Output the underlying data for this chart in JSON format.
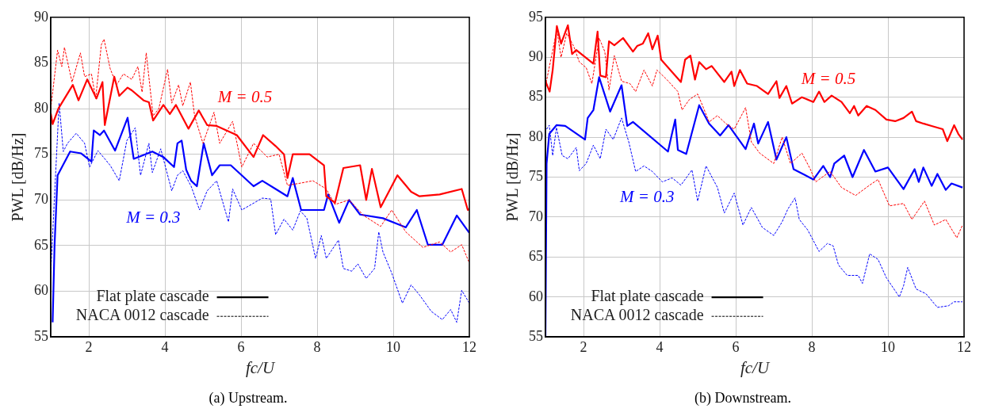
{
  "chart_data": [
    {
      "type": "line",
      "xlabel": "fc/U",
      "ylabel": "PWL [dB/Hz]",
      "xlim": [
        1,
        12
      ],
      "xticks": [
        2,
        4,
        6,
        8,
        10,
        12
      ],
      "ylim": [
        55,
        90
      ],
      "yticks": [
        55,
        60,
        65,
        70,
        75,
        80,
        85,
        90
      ],
      "grid": true,
      "annotations": [
        "M = 0.5",
        "M = 0.3",
        "Flat plate cascade",
        "NACA 0012 cascade",
        "(a) Upstream."
      ],
      "series": [
        {
          "color": "#ff0000",
          "line_style": "solid",
          "x": [
            1.0,
            1.05,
            1.2,
            1.58,
            1.73,
            1.96,
            2.2,
            2.36,
            2.42,
            2.67,
            2.8,
            3.02,
            3.13,
            3.44,
            3.58,
            3.69,
            3.96,
            4.13,
            4.29,
            4.62,
            4.89,
            5.11,
            5.36,
            5.89,
            6.33,
            6.58,
            6.91,
            7.13,
            7.22,
            7.36,
            7.8,
            8.18,
            8.24,
            8.47,
            8.69,
            9.13,
            9.29,
            9.44,
            9.67,
            10.11,
            10.47,
            10.69,
            11.22,
            11.8,
            11.96,
            12
          ],
          "values": [
            79.5,
            78.3,
            80,
            82.6,
            80.9,
            83.2,
            81.1,
            82.9,
            78.2,
            83.5,
            81.4,
            82.3,
            82,
            80.9,
            80.7,
            78.7,
            80.4,
            79.4,
            80.4,
            77.8,
            79.8,
            78.2,
            78.1,
            77.1,
            74.7,
            77.1,
            75.9,
            75,
            72.4,
            75,
            75,
            73.8,
            70.4,
            69.7,
            73.5,
            73.8,
            70,
            73.4,
            69.2,
            72.7,
            70.9,
            70.4,
            70.6,
            71.2,
            68.9,
            69
          ]
        },
        {
          "color": "#ff0000",
          "line_style": "dashed",
          "x": [
            1.0,
            1.18,
            1.29,
            1.36,
            1.56,
            1.78,
            1.89,
            2.07,
            2.18,
            2.33,
            2.4,
            2.56,
            2.73,
            2.91,
            3.13,
            3.29,
            3.4,
            3.51,
            3.69,
            3.84,
            4.07,
            4.18,
            4.36,
            4.47,
            4.67,
            4.78,
            5.0,
            5.29,
            5.44,
            5.78,
            6.02,
            6.33,
            6.69,
            7.0,
            7.22,
            7.51,
            7.89,
            8.24,
            8.47,
            8.84,
            9.22,
            9.67,
            9.96,
            10.33,
            10.78,
            11.22,
            11.51,
            11.8,
            12
          ],
          "values": [
            80,
            86.4,
            84.6,
            86.7,
            82.9,
            86.1,
            83.5,
            83.8,
            81.1,
            87,
            87.6,
            84.4,
            82.6,
            83.8,
            83.2,
            84.6,
            81.8,
            86.1,
            79.2,
            80,
            84.3,
            80.6,
            82.6,
            80.3,
            82.9,
            79.2,
            76.2,
            79.6,
            76.2,
            78.6,
            73.6,
            76.2,
            74.7,
            75,
            71.6,
            71.8,
            72.1,
            71.2,
            69.5,
            70,
            68.3,
            67.1,
            68.9,
            66.5,
            64.8,
            65.4,
            64.3,
            65.1,
            63.1
          ]
        },
        {
          "color": "#0000ff",
          "line_style": "solid",
          "x": [
            1.05,
            1.1,
            1.18,
            1.51,
            1.8,
            2.07,
            2.13,
            2.29,
            2.4,
            2.69,
            3.02,
            3.18,
            3.67,
            3.96,
            4.24,
            4.33,
            4.44,
            4.56,
            4.69,
            4.84,
            5.02,
            5.24,
            5.44,
            5.73,
            6.02,
            6.33,
            6.56,
            6.91,
            7.22,
            7.36,
            7.58,
            8.18,
            8.29,
            8.58,
            8.84,
            9.13,
            9.73,
            10.33,
            10.62,
            10.91,
            11.29,
            11.67,
            12
          ],
          "values": [
            56.6,
            65,
            72.7,
            75.3,
            75.1,
            74.2,
            77.6,
            77.1,
            77.6,
            75.4,
            79,
            74.5,
            75.3,
            74.7,
            73.6,
            76.2,
            76.5,
            73.3,
            72.1,
            71.5,
            76.2,
            72.7,
            73.8,
            73.8,
            72.7,
            71.5,
            72.1,
            71.2,
            70.4,
            72.4,
            68.9,
            68.9,
            70.6,
            67.5,
            70,
            68.4,
            68,
            67,
            68.9,
            65.1,
            65.1,
            68.3,
            66.4
          ]
        },
        {
          "color": "#0000ff",
          "line_style": "dashed",
          "x": [
            1.0,
            1.22,
            1.33,
            1.44,
            1.67,
            1.89,
            2.02,
            2.24,
            2.56,
            2.8,
            3.0,
            3.22,
            3.36,
            3.58,
            3.67,
            3.89,
            4.18,
            4.33,
            4.47,
            4.69,
            4.91,
            5.11,
            5.36,
            5.67,
            5.78,
            6.02,
            6.56,
            6.78,
            6.91,
            7.13,
            7.36,
            7.56,
            7.73,
            7.96,
            8.11,
            8.24,
            8.56,
            8.69,
            8.91,
            9.07,
            9.29,
            9.51,
            9.62,
            9.73,
            9.96,
            10.24,
            10.47,
            10.69,
            11.0,
            11.29,
            11.51,
            11.67,
            11.8,
            12
          ],
          "values": [
            62,
            80.6,
            75.3,
            76.2,
            77.3,
            76.2,
            73.6,
            75.4,
            73.8,
            72.1,
            76.5,
            77.9,
            72.7,
            76.2,
            73,
            75.6,
            71,
            72.7,
            73.2,
            71.5,
            68.9,
            71,
            72.1,
            67.6,
            71.2,
            68.9,
            70.2,
            70.1,
            66.2,
            67.9,
            66.7,
            68.8,
            68,
            63.6,
            66.1,
            63.6,
            65.6,
            62.5,
            62.2,
            63,
            61.4,
            62.5,
            66.5,
            64.3,
            62,
            58.7,
            60.7,
            59.6,
            57.8,
            56.9,
            58,
            56.6,
            60.1,
            58.7
          ]
        }
      ]
    },
    {
      "type": "line",
      "xlabel": "fc/U",
      "ylabel": "PWL [dB/Hz]",
      "xlim": [
        1,
        12
      ],
      "xticks": [
        2,
        4,
        6,
        8,
        10,
        12
      ],
      "ylim": [
        55,
        95
      ],
      "yticks": [
        55,
        60,
        65,
        70,
        75,
        80,
        85,
        90,
        95
      ],
      "grid": true,
      "annotations": [
        "M = 0.5",
        "M = 0.3",
        "Flat plate cascade",
        "NACA 0012 cascade",
        "(b) Downstream."
      ],
      "series": [
        {
          "color": "#ff0000",
          "line_style": "solid",
          "x": [
            1.0,
            1.11,
            1.19,
            1.3,
            1.41,
            1.59,
            1.7,
            1.81,
            2.26,
            2.37,
            2.44,
            2.59,
            2.67,
            2.81,
            3.04,
            3.3,
            3.41,
            3.56,
            3.7,
            3.81,
            3.95,
            4.04,
            4.56,
            4.67,
            4.81,
            4.93,
            5.04,
            5.22,
            5.37,
            5.7,
            5.89,
            5.96,
            6.11,
            6.3,
            6.56,
            6.85,
            7.07,
            7.15,
            7.33,
            7.48,
            7.74,
            8.04,
            8.19,
            8.33,
            8.52,
            8.78,
            9.0,
            9.11,
            9.22,
            9.44,
            9.67,
            9.96,
            10.19,
            10.41,
            10.63,
            10.74,
            10.93,
            11.15,
            11.44,
            11.56,
            11.74,
            11.85,
            11.96
          ],
          "values": [
            87,
            85.7,
            88.4,
            93.9,
            91.7,
            94,
            90.4,
            90.9,
            89.2,
            93.2,
            87.7,
            87.5,
            92,
            91.5,
            92.4,
            90.7,
            91.4,
            91.7,
            93,
            91,
            92.7,
            89.7,
            86.9,
            89.7,
            90.2,
            87.2,
            89.4,
            88.5,
            88.9,
            86.9,
            88.2,
            86.4,
            88.4,
            86.7,
            86.4,
            85.4,
            87,
            84.9,
            86.4,
            84.2,
            85,
            84.4,
            85.7,
            84.4,
            85.2,
            84.4,
            83,
            83.9,
            82.7,
            83.9,
            83.4,
            82.2,
            82,
            82.4,
            83.2,
            82,
            81.7,
            81.4,
            81,
            79.5,
            81.5,
            80.4,
            79.7
          ]
        },
        {
          "color": "#ff0000",
          "line_style": "dashed",
          "x": [
            1.0,
            1.3,
            1.41,
            1.56,
            1.74,
            1.89,
            2.07,
            2.22,
            2.41,
            2.56,
            2.67,
            2.81,
            3.0,
            3.22,
            3.37,
            3.59,
            3.81,
            3.93,
            4.19,
            4.48,
            4.59,
            4.78,
            5.0,
            5.15,
            5.3,
            5.52,
            5.74,
            5.96,
            6.26,
            6.41,
            6.63,
            7.0,
            7.22,
            7.44,
            7.74,
            7.96,
            8.1,
            8.48,
            8.78,
            9.15,
            9.52,
            9.74,
            10.04,
            10.41,
            10.63,
            10.96,
            11.22,
            11.52,
            11.81,
            11.96
          ],
          "values": [
            86.4,
            93.4,
            90,
            93,
            91.4,
            89.4,
            88.7,
            86.7,
            92.4,
            90.7,
            85.9,
            90.2,
            87,
            86.7,
            85.7,
            88.4,
            86.4,
            88.4,
            87.2,
            85.7,
            83.4,
            84.7,
            85.4,
            83.7,
            81.9,
            82.7,
            81.7,
            81,
            83.7,
            79.4,
            78,
            76.7,
            80,
            76.7,
            78,
            76,
            74.4,
            75.7,
            73.7,
            72.7,
            74,
            74.7,
            71.4,
            71.7,
            69.7,
            72,
            69,
            69.7,
            67.4,
            69
          ]
        },
        {
          "color": "#0000ff",
          "line_style": "solid",
          "x": [
            1.0,
            1.03,
            1.1,
            1.29,
            1.52,
            2.04,
            2.11,
            2.26,
            2.41,
            2.7,
            3.0,
            3.15,
            3.3,
            4.22,
            4.3,
            4.41,
            4.48,
            4.7,
            5.04,
            5.3,
            5.59,
            5.81,
            6.26,
            6.48,
            6.59,
            6.85,
            7.07,
            7.33,
            7.52,
            8.04,
            8.3,
            8.48,
            8.59,
            8.85,
            9.07,
            9.37,
            9.67,
            10.0,
            10.41,
            10.7,
            10.81,
            10.93,
            11.15,
            11.3,
            11.52,
            11.67,
            11.96
          ],
          "values": [
            55,
            76.7,
            80.4,
            81.5,
            81.4,
            79.7,
            82.4,
            83.4,
            87.5,
            83.2,
            86.5,
            81.4,
            81.9,
            78.2,
            79.9,
            82.2,
            78.4,
            77.9,
            84,
            81.7,
            80.2,
            81.5,
            78.5,
            81.7,
            79.2,
            81.9,
            77.2,
            80,
            76,
            74.7,
            76.4,
            75,
            76.7,
            77.7,
            75,
            78.4,
            75.7,
            76.2,
            73.5,
            76,
            74.4,
            76.2,
            73.9,
            75.4,
            73.4,
            74.2,
            73.7
          ]
        },
        {
          "color": "#0000ff",
          "line_style": "dashed",
          "x": [
            1.03,
            1.1,
            1.19,
            1.29,
            1.44,
            1.59,
            1.81,
            1.89,
            2.07,
            2.26,
            2.44,
            2.59,
            2.78,
            3.0,
            3.19,
            3.37,
            3.59,
            3.81,
            4.07,
            4.33,
            4.56,
            4.85,
            5.0,
            5.22,
            5.52,
            5.7,
            5.96,
            6.19,
            6.41,
            6.7,
            7.0,
            7.22,
            7.37,
            7.56,
            7.67,
            7.89,
            8.19,
            8.41,
            8.56,
            8.7,
            8.93,
            9.22,
            9.33,
            9.52,
            9.74,
            9.96,
            10.3,
            10.41,
            10.52,
            10.74,
            11.0,
            11.3,
            11.59,
            11.74,
            11.96
          ],
          "values": [
            81,
            81.5,
            77.7,
            81.2,
            77.7,
            77.3,
            78.7,
            75.8,
            76.7,
            79,
            77.3,
            81,
            79.7,
            82.4,
            79.4,
            75.7,
            76.4,
            75.7,
            74.4,
            74.9,
            74,
            75.9,
            72,
            76.4,
            73.7,
            70.5,
            73,
            69,
            71.2,
            68.7,
            67.7,
            69.4,
            71,
            72.4,
            69.7,
            68.4,
            65.7,
            66.7,
            66.4,
            64,
            62.7,
            62.7,
            61.7,
            65.4,
            64.7,
            62.4,
            60,
            61.4,
            63.7,
            61,
            60.4,
            58.7,
            58.9,
            59.4,
            59.4
          ]
        }
      ]
    }
  ]
}
